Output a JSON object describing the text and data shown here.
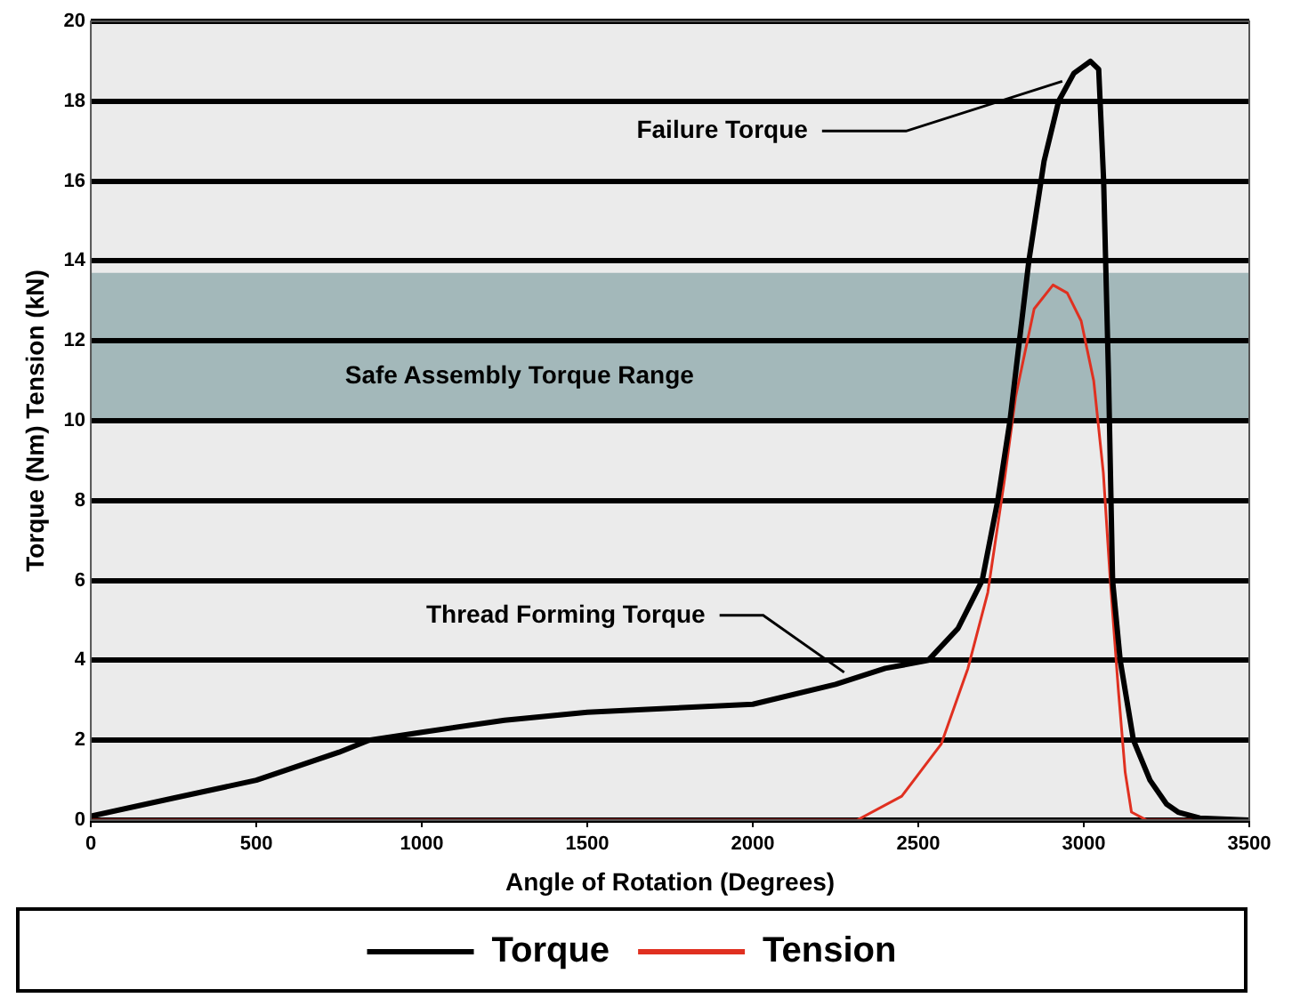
{
  "chart_data": {
    "type": "line",
    "xlabel": "Angle of Rotation (Degrees)",
    "ylabel": "Torque (Nm) Tension (kN)",
    "xlim": [
      0,
      3500
    ],
    "xticks": [
      0,
      500,
      1000,
      1500,
      2000,
      2500,
      3000,
      3500
    ],
    "ylim": [
      0,
      20
    ],
    "yticks": [
      0,
      2,
      4,
      6,
      8,
      10,
      12,
      14,
      16,
      18,
      20
    ],
    "grid": "y",
    "legend": "bottom",
    "marker": "none",
    "line_style": "solid",
    "series": [
      {
        "name": "Torque",
        "color": "#000000",
        "x": [
          0,
          250,
          500,
          750,
          840,
          1000,
          1250,
          1500,
          1750,
          2000,
          2250,
          2400,
          2530,
          2620,
          2693,
          2740,
          2777,
          2834,
          2880,
          2924,
          2970,
          3020,
          3045,
          3060,
          3075,
          3087,
          3110,
          3150,
          3200,
          3250,
          3285,
          3350,
          3500
        ],
        "values": [
          0.1,
          0.55,
          1.0,
          1.7,
          2.0,
          2.2,
          2.5,
          2.7,
          2.8,
          2.9,
          3.4,
          3.8,
          4.0,
          4.8,
          6.0,
          8.0,
          10.0,
          14.0,
          16.5,
          18.0,
          18.7,
          19.0,
          18.8,
          16.0,
          11.0,
          6.0,
          4.0,
          2.0,
          1.0,
          0.4,
          0.2,
          0.05,
          0
        ]
      },
      {
        "name": "Tension",
        "color": "#e03020",
        "x": [
          0,
          2315,
          2450,
          2569,
          2650,
          2710,
          2760,
          2794,
          2850,
          2907,
          2950,
          2992,
          3030,
          3059,
          3080,
          3104,
          3125,
          3144,
          3190,
          3500
        ],
        "values": [
          0,
          0,
          0.6,
          1.9,
          3.8,
          5.7,
          8.5,
          10.6,
          12.8,
          13.4,
          13.2,
          12.5,
          11.0,
          8.7,
          6.0,
          3.3,
          1.2,
          0.2,
          0,
          0
        ]
      }
    ],
    "bands": [
      {
        "axis": "y",
        "from": 10,
        "to": 13.7,
        "label": "Safe Assembly Torque Range",
        "color": "#a3b8ba"
      }
    ],
    "annotations": [
      {
        "text": "Failure Torque",
        "x": 2935,
        "y": 18.5
      },
      {
        "text": "Thread Forming Torque",
        "x": 2276,
        "y": 3.7
      }
    ]
  }
}
